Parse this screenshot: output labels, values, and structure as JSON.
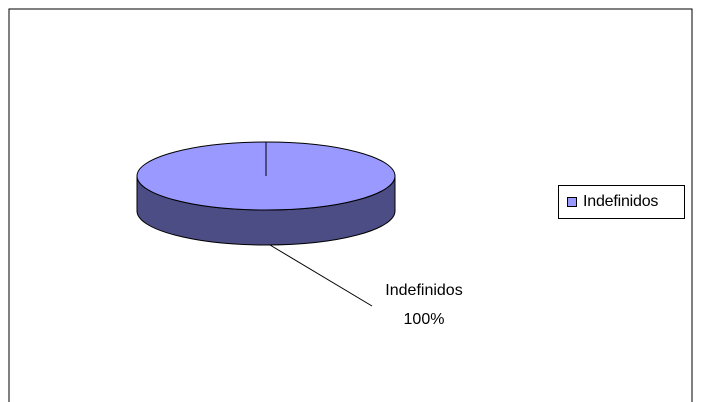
{
  "chart_data": {
    "type": "pie",
    "categories": [
      "Indefinidos"
    ],
    "values": [
      100
    ],
    "data_labels": [
      {
        "name": "Indefinidos",
        "percent": "100%"
      }
    ],
    "legend": {
      "position": "right",
      "entries": [
        "Indefinidos"
      ]
    },
    "three_d": true
  },
  "colors": {
    "slice_top": "#9999ff",
    "slice_side": "#4d4d86",
    "outline": "#000000",
    "background": "#ffffff"
  }
}
